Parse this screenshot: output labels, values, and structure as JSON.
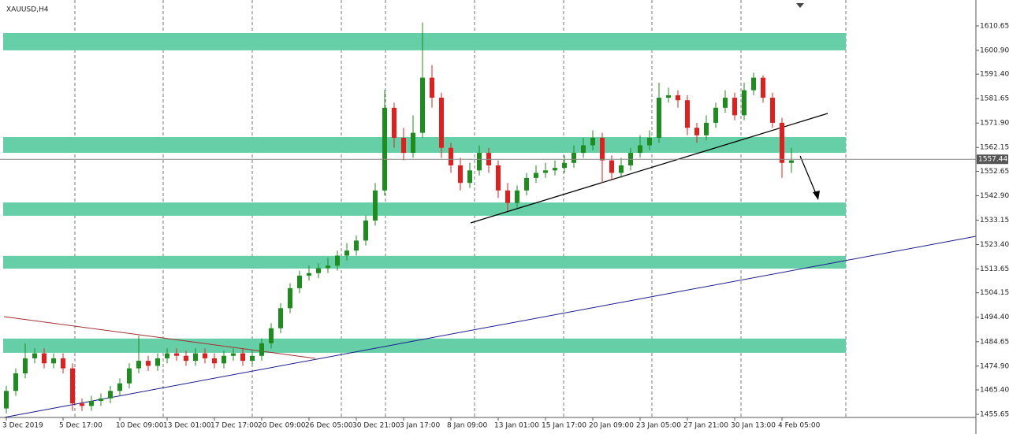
{
  "chart_data": {
    "type": "candlestick",
    "title": "XAUUSD,H4",
    "categories": [
      "3 Dec 2019",
      null,
      null,
      null,
      null,
      null,
      "5 Dec 17:00",
      null,
      null,
      null,
      null,
      null,
      "10 Dec 09:00",
      null,
      null,
      null,
      null,
      "13 Dec 01:00",
      null,
      null,
      null,
      null,
      "17 Dec 17:00",
      null,
      null,
      null,
      null,
      "20 Dec 09:00",
      null,
      null,
      null,
      null,
      "26 Dec 05:00",
      null,
      null,
      null,
      null,
      "30 Dec 21:00",
      null,
      null,
      null,
      null,
      "3 Jan 17:00",
      null,
      null,
      null,
      null,
      "8 Jan 09:00",
      null,
      null,
      null,
      null,
      "13 Jan 01:00",
      null,
      null,
      null,
      null,
      "15 Jan 17:00",
      null,
      null,
      null,
      null,
      "20 Jan 09:00",
      null,
      null,
      null,
      null,
      "23 Jan 05:00",
      null,
      null,
      null,
      null,
      "27 Jan 21:00",
      null,
      null,
      null,
      null,
      "30 Jan 13:00",
      null,
      null,
      null,
      null,
      "4 Feb 05:00",
      null
    ],
    "candles": {
      "open": [
        1458,
        1465,
        1472,
        1478,
        1480,
        1476,
        1478,
        1474,
        1460,
        1459,
        1461,
        1462,
        1465,
        1468,
        1474,
        1477,
        1475,
        1478,
        1480,
        1479,
        1477,
        1480,
        1478,
        1476,
        1479,
        1480,
        1477,
        1479,
        1484,
        1490,
        1498,
        1506,
        1511,
        1512,
        1514,
        1515,
        1519,
        1521,
        1525,
        1533,
        1545,
        1578,
        1566,
        1560,
        1568,
        1590,
        1582,
        1562,
        1555,
        1548,
        1553,
        1560,
        1555,
        1545,
        1540,
        1545,
        1550,
        1552,
        1553,
        1554,
        1556,
        1560,
        1563,
        1566,
        1557,
        1552,
        1555,
        1560,
        1563,
        1566,
        1582,
        1583,
        1581,
        1570,
        1567,
        1572,
        1578,
        1582,
        1575,
        1585,
        1590,
        1582,
        1572,
        1556
      ],
      "high": [
        1467,
        1474,
        1484,
        1482,
        1482,
        1480,
        1480,
        1476,
        1462,
        1463,
        1464,
        1467,
        1470,
        1476,
        1487,
        1479,
        1480,
        1482,
        1482,
        1481,
        1482,
        1482,
        1480,
        1481,
        1482,
        1482,
        1481,
        1486,
        1492,
        1500,
        1508,
        1513,
        1515,
        1516,
        1518,
        1521,
        1524,
        1527,
        1535,
        1548,
        1585,
        1580,
        1570,
        1575,
        1612,
        1595,
        1584,
        1564,
        1558,
        1556,
        1563,
        1562,
        1557,
        1548,
        1547,
        1552,
        1555,
        1556,
        1557,
        1559,
        1563,
        1566,
        1569,
        1568,
        1559,
        1558,
        1562,
        1567,
        1569,
        1588,
        1586,
        1585,
        1583,
        1572,
        1575,
        1580,
        1585,
        1584,
        1588,
        1592,
        1591,
        1584,
        1574,
        1562
      ],
      "low": [
        1456,
        1463,
        1470,
        1476,
        1474,
        1474,
        1472,
        1457,
        1457,
        1457,
        1459,
        1460,
        1463,
        1466,
        1472,
        1473,
        1473,
        1476,
        1477,
        1475,
        1475,
        1476,
        1474,
        1474,
        1477,
        1475,
        1475,
        1477,
        1482,
        1488,
        1496,
        1504,
        1509,
        1510,
        1512,
        1513,
        1517,
        1519,
        1523,
        1531,
        1543,
        1562,
        1557,
        1558,
        1566,
        1578,
        1558,
        1552,
        1545,
        1546,
        1551,
        1552,
        1542,
        1537,
        1538,
        1543,
        1548,
        1550,
        1551,
        1552,
        1554,
        1558,
        1561,
        1548,
        1549,
        1550,
        1553,
        1558,
        1561,
        1564,
        1580,
        1578,
        1567,
        1564,
        1565,
        1570,
        1576,
        1573,
        1573,
        1583,
        1580,
        1570,
        1550,
        1552
      ],
      "close": [
        1465,
        1472,
        1478,
        1480,
        1476,
        1478,
        1474,
        1460,
        1459,
        1461,
        1462,
        1465,
        1468,
        1474,
        1477,
        1475,
        1478,
        1480,
        1479,
        1477,
        1480,
        1478,
        1476,
        1479,
        1480,
        1477,
        1479,
        1484,
        1490,
        1498,
        1506,
        1511,
        1512,
        1514,
        1515,
        1519,
        1521,
        1525,
        1533,
        1545,
        1578,
        1566,
        1560,
        1568,
        1590,
        1582,
        1562,
        1555,
        1548,
        1553,
        1560,
        1555,
        1545,
        1540,
        1545,
        1550,
        1552,
        1553,
        1554,
        1556,
        1560,
        1563,
        1566,
        1557,
        1552,
        1555,
        1560,
        1563,
        1566,
        1582,
        1583,
        1581,
        1570,
        1567,
        1572,
        1578,
        1582,
        1575,
        1585,
        1590,
        1582,
        1572,
        1556,
        1557
      ]
    },
    "up_color": "#1e8c1e",
    "down_color": "#e0201e",
    "zones": [
      [
        1600.9,
        1607.8
      ],
      [
        1560.0,
        1566.3
      ],
      [
        1534.9,
        1540.2
      ],
      [
        1513.8,
        1518.9
      ],
      [
        1480.2,
        1485.9
      ]
    ],
    "zone_color": "#66cfa8",
    "current_price": 1557.44,
    "ylim": [
      1454.4,
      1621.0
    ],
    "yticks": [
      1610.65,
      {
        "value": 1600.9,
        "label": "1600.90"
      },
      {
        "value": 1591.4,
        "label": "1591.40"
      },
      1581.65,
      {
        "value": 1571.9,
        "label": "1571.90"
      },
      1562.15,
      1552.65,
      {
        "value": 1542.9,
        "label": "1542.90"
      },
      1533.15,
      {
        "value": 1523.4,
        "label": "1523.40"
      },
      1513.65,
      1504.15,
      {
        "value": 1494.4,
        "label": "1494.40"
      },
      1484.65,
      {
        "value": 1474.9,
        "label": "1474.90"
      },
      {
        "value": 1465.4,
        "label": "1465.40"
      },
      1455.65
    ]
  }
}
